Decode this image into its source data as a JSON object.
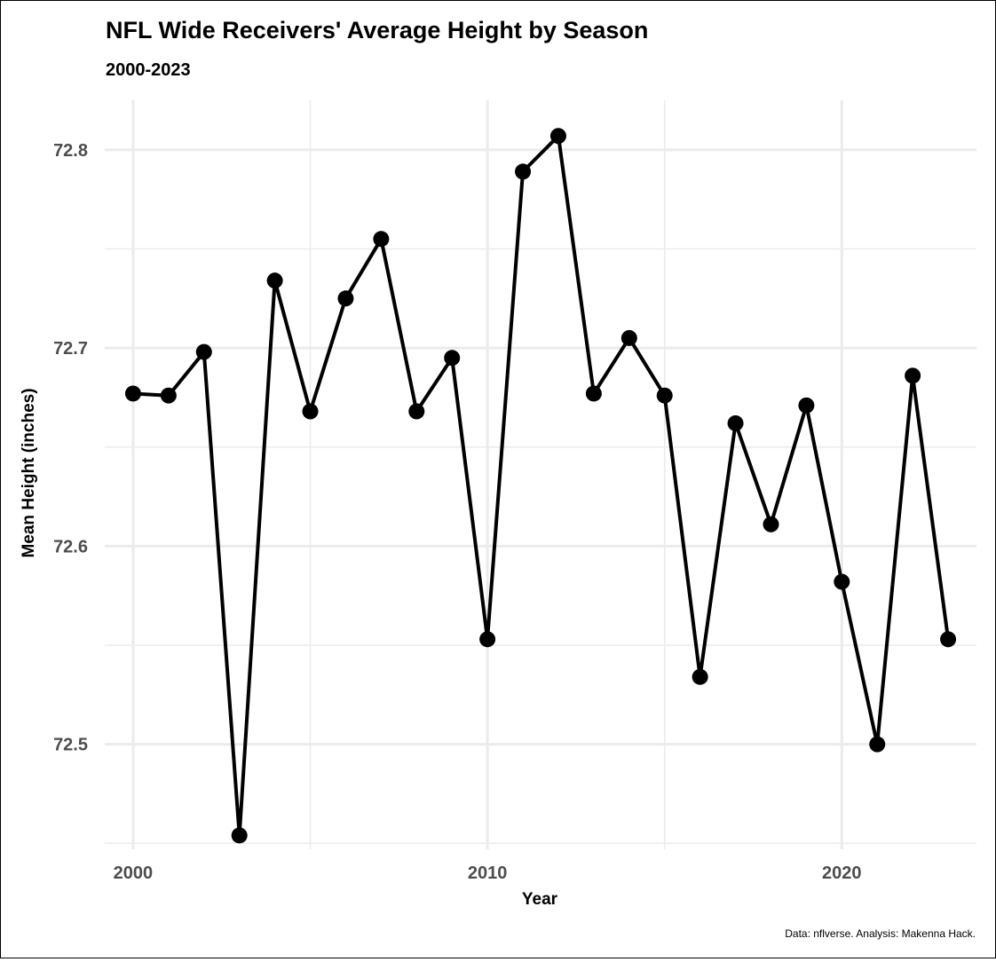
{
  "chart_data": {
    "type": "line",
    "title": "NFL Wide Receivers' Average Height by Season",
    "subtitle": "2000-2023",
    "xlabel": "Year",
    "ylabel": "Mean Height (inches)",
    "caption": "Data: nflverse. Analysis: Makenna Hack.",
    "xlim": [
      1999.2,
      2023.8
    ],
    "ylim": [
      72.447,
      72.825
    ],
    "x_ticks": [
      2000,
      2010,
      2020
    ],
    "x_minor_ticks": [
      2005,
      2015
    ],
    "y_ticks": [
      72.5,
      72.6,
      72.7,
      72.8
    ],
    "y_minor_ticks": [
      72.45,
      72.55,
      72.65,
      72.75
    ],
    "grid": true,
    "legend": "none",
    "series": [
      {
        "color": "#000000",
        "x": [
          2000,
          2001,
          2002,
          2003,
          2004,
          2005,
          2006,
          2007,
          2008,
          2009,
          2010,
          2011,
          2012,
          2013,
          2014,
          2015,
          2016,
          2017,
          2018,
          2019,
          2020,
          2021,
          2022,
          2023
        ],
        "y": [
          72.677,
          72.676,
          72.698,
          72.454,
          72.734,
          72.668,
          72.725,
          72.755,
          72.668,
          72.695,
          72.553,
          72.789,
          72.807,
          72.677,
          72.705,
          72.676,
          72.534,
          72.662,
          72.611,
          72.671,
          72.582,
          72.5,
          72.686,
          72.553
        ]
      }
    ]
  }
}
